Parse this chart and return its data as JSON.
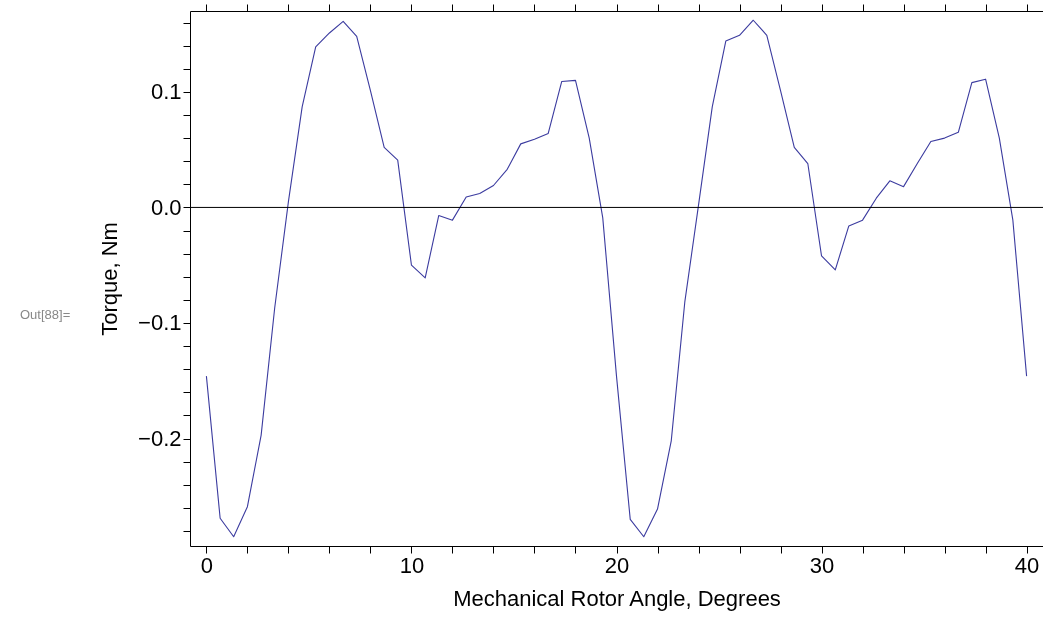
{
  "chart_data": {
    "type": "line",
    "xlabel": "Mechanical Rotor Angle, Degrees",
    "ylabel": "Torque, Nm",
    "annotations": [
      "Out[88]="
    ],
    "x": [
      0,
      0.67,
      1.33,
      2,
      2.67,
      3.33,
      4,
      4.67,
      5.33,
      6,
      6.67,
      7.33,
      8,
      8.67,
      9.33,
      10,
      10.67,
      11.33,
      12,
      12.67,
      13.33,
      14,
      14.67,
      15.33,
      16,
      16.67,
      17.33,
      18,
      18.67,
      19.33,
      20,
      20.67,
      21.33,
      22,
      22.67,
      23.33,
      24,
      24.67,
      25.33,
      26,
      26.67,
      27.33,
      28,
      28.67,
      29.33,
      30,
      30.67,
      31.33,
      32,
      32.67,
      33.33,
      34,
      34.67,
      35.33,
      36,
      36.67,
      37.33,
      38,
      38.67,
      39.33,
      40
    ],
    "series": [
      {
        "color": "#3b3b9f",
        "values": [
          -0.146,
          -0.269,
          -0.285,
          -0.259,
          -0.197,
          -0.087,
          0.005,
          0.087,
          0.139,
          0.151,
          0.161,
          0.148,
          0.101,
          0.052,
          0.041,
          -0.05,
          -0.061,
          -0.007,
          -0.011,
          0.009,
          0.012,
          0.019,
          0.033,
          0.055,
          0.059,
          0.064,
          0.109,
          0.11,
          0.06,
          -0.009,
          -0.146,
          -0.27,
          -0.285,
          -0.261,
          -0.202,
          -0.082,
          0.002,
          0.087,
          0.144,
          0.149,
          0.162,
          0.149,
          0.101,
          0.052,
          0.038,
          -0.042,
          -0.054,
          -0.016,
          -0.011,
          0.008,
          0.023,
          0.018,
          0.038,
          0.057,
          0.06,
          0.065,
          0.108,
          0.111,
          0.06,
          -0.011,
          -0.146
        ]
      }
    ],
    "xlim": [
      -0.8,
      40.8
    ],
    "ylim": [
      -0.293,
      0.17
    ],
    "xticks": [
      0,
      {
        "value": 2,
        "label": null
      },
      {
        "value": 4,
        "label": null
      },
      {
        "value": 6,
        "label": null
      },
      {
        "value": 8,
        "label": null
      },
      10,
      {
        "value": 12,
        "label": null
      },
      {
        "value": 14,
        "label": null
      },
      {
        "value": 16,
        "label": null
      },
      {
        "value": 18,
        "label": null
      },
      20,
      {
        "value": 22,
        "label": null
      },
      {
        "value": 24,
        "label": null
      },
      {
        "value": 26,
        "label": null
      },
      {
        "value": 28,
        "label": null
      },
      30,
      {
        "value": 32,
        "label": null
      },
      {
        "value": 34,
        "label": null
      },
      {
        "value": 36,
        "label": null
      },
      {
        "value": 38,
        "label": null
      },
      40
    ],
    "yticks": [
      {
        "value": -0.28,
        "label": null
      },
      {
        "value": -0.26,
        "label": null
      },
      {
        "value": -0.24,
        "label": null
      },
      {
        "value": -0.22,
        "label": null
      },
      {
        "value": -0.2,
        "label": "−0.2"
      },
      {
        "value": -0.18,
        "label": null
      },
      {
        "value": -0.16,
        "label": null
      },
      {
        "value": -0.14,
        "label": null
      },
      {
        "value": -0.12,
        "label": null
      },
      {
        "value": -0.1,
        "label": "−0.1"
      },
      {
        "value": -0.08,
        "label": null
      },
      {
        "value": -0.06,
        "label": null
      },
      {
        "value": -0.04,
        "label": null
      },
      {
        "value": -0.02,
        "label": null
      },
      {
        "value": 0,
        "label": "0.0"
      },
      {
        "value": 0.02,
        "label": null
      },
      {
        "value": 0.04,
        "label": null
      },
      {
        "value": 0.06,
        "label": null
      },
      {
        "value": 0.08,
        "label": null
      },
      0.1,
      {
        "value": 0.12,
        "label": null
      },
      {
        "value": 0.14,
        "label": null
      },
      {
        "value": 0.16,
        "label": null
      }
    ],
    "ref_lines": [
      {
        "axis": "y",
        "value": 0,
        "color": "#000000"
      }
    ],
    "line_style": "solid",
    "marker": "none",
    "grid": false
  }
}
